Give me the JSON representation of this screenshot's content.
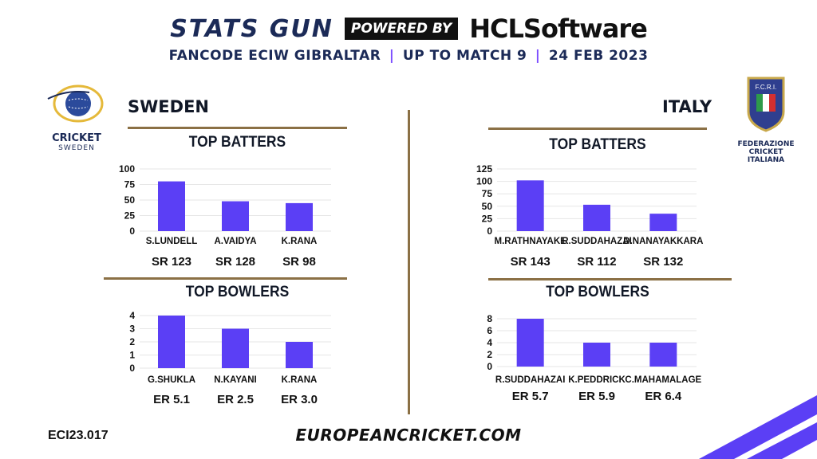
{
  "header": {
    "brand": "STATS GUN",
    "powered_by": "POWERED BY",
    "sponsor": "HCLSoftware",
    "subtitle_event": "FANCODE ECIW GIBRALTAR",
    "subtitle_match": "UP TO MATCH 9",
    "subtitle_date": "24 FEB 2023",
    "separator": "|"
  },
  "teams": {
    "left": {
      "name": "SWEDEN",
      "logo_text_1": "CRICKET",
      "logo_text_2": "SWEDEN"
    },
    "right": {
      "name": "ITALY",
      "logo_text_1": "FEDERAZIONE",
      "logo_text_2": "CRICKET ITALIANA",
      "logo_badge": "F.C.R.I."
    }
  },
  "sections": {
    "batters": "TOP BATTERS",
    "bowlers": "TOP BOWLERS"
  },
  "footer": {
    "code": "ECI23.017",
    "url": "EUROPEANCRICKET.COM"
  },
  "colors": {
    "bar": "#5b3ff5",
    "navy": "#1b2a57",
    "gold": "#8b7045",
    "accent": "#7c4dff"
  },
  "chart_data": [
    {
      "type": "bar",
      "team": "SWEDEN",
      "title": "TOP BATTERS",
      "categories": [
        "S.LUNDELL",
        "A.VAIDYA",
        "K.RANA"
      ],
      "values": [
        80,
        48,
        45
      ],
      "stats": [
        "SR 123",
        "SR 128",
        "SR 98"
      ],
      "ylim": [
        0,
        100
      ],
      "yticks": [
        0,
        25,
        50,
        75,
        100
      ],
      "grid": true
    },
    {
      "type": "bar",
      "team": "SWEDEN",
      "title": "TOP BOWLERS",
      "categories": [
        "G.SHUKLA",
        "N.KAYANI",
        "K.RANA"
      ],
      "values": [
        4,
        3,
        2
      ],
      "stats": [
        "ER 5.1",
        "ER 2.5",
        "ER 3.0"
      ],
      "ylim": [
        0,
        4
      ],
      "yticks": [
        0,
        1,
        2,
        3,
        4
      ],
      "grid": true
    },
    {
      "type": "bar",
      "team": "ITALY",
      "title": "TOP BATTERS",
      "categories": [
        "M.RATHNAYAKE",
        "R.SUDDAHAZAI",
        "D.NANAYAKKARA"
      ],
      "values": [
        102,
        53,
        35
      ],
      "stats": [
        "SR 143",
        "SR 112",
        "SR 132"
      ],
      "ylim": [
        0,
        125
      ],
      "yticks": [
        0,
        25,
        50,
        75,
        100,
        125
      ],
      "grid": true
    },
    {
      "type": "bar",
      "team": "ITALY",
      "title": "TOP BOWLERS",
      "categories": [
        "R.SUDDAHAZAI",
        "K.PEDDRICK",
        "C.MAHAMALAGE"
      ],
      "values": [
        8,
        4,
        4
      ],
      "stats": [
        "ER 5.7",
        "ER 5.9",
        "ER 6.4"
      ],
      "ylim": [
        0,
        8
      ],
      "yticks": [
        0,
        2,
        4,
        6,
        8
      ],
      "grid": true
    }
  ]
}
